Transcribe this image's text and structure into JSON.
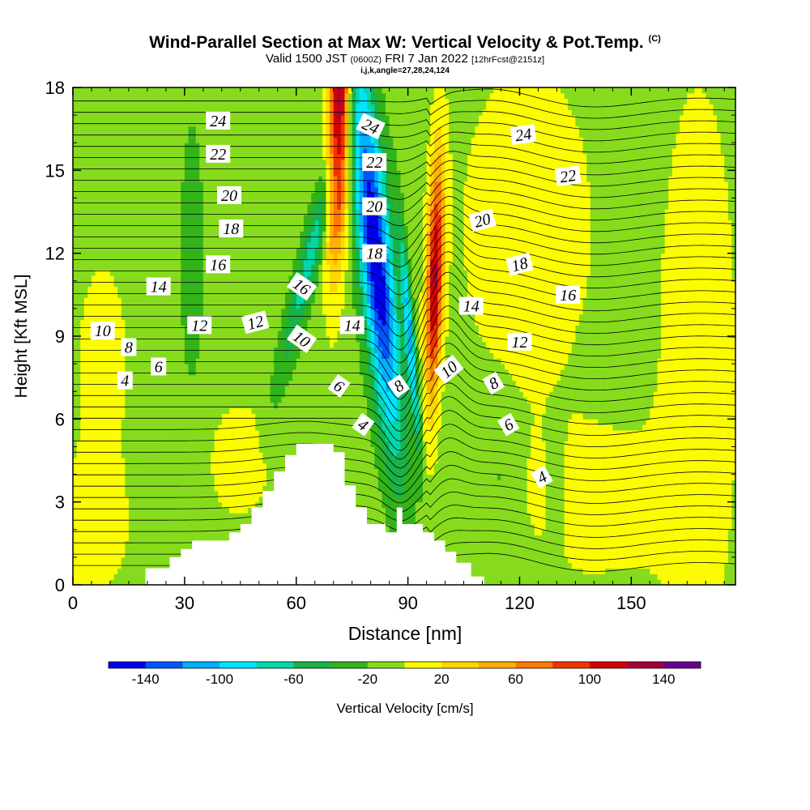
{
  "title": {
    "main": "Wind-Parallel Section at Max W: Vertical Velocity & Pot.Temp.",
    "copyright": "(C)",
    "valid_prefix": "Valid 1500 JST",
    "valid_zulu": "(0600Z)",
    "valid_date": "FRI 7 Jan 2022",
    "valid_fcst": "[12hrFcst@2151z]",
    "indices": "i,j,k,angle=27,28,24,124"
  },
  "chart_data": {
    "type": "heatmap",
    "xlabel": "Distance [nm]",
    "ylabel": "Height [Kft MSL]",
    "xlim": [
      0,
      178
    ],
    "ylim": [
      0,
      18
    ],
    "xticks": [
      0,
      30,
      60,
      90,
      120,
      150
    ],
    "yticks": [
      0,
      3,
      6,
      9,
      12,
      15,
      18
    ],
    "grid": false,
    "colorbar": {
      "label": "Vertical Velocity [cm/s]",
      "boundaries": [
        -160,
        -140,
        -120,
        -100,
        -80,
        -60,
        -40,
        -20,
        0,
        20,
        40,
        60,
        80,
        100,
        120,
        140,
        160
      ],
      "tick_labels": [
        "-140",
        "-100",
        "-60",
        "-20",
        "20",
        "60",
        "100",
        "140"
      ],
      "colors": [
        "#0000ee",
        "#0055ff",
        "#00b0ff",
        "#00e5ff",
        "#00d8a8",
        "#19b24a",
        "#32b31a",
        "#86dc1c",
        "#fcfc00",
        "#ffd700",
        "#ffb000",
        "#ff7a00",
        "#f23300",
        "#d60000",
        "#a8003c",
        "#6a0090"
      ]
    },
    "terrain_profile": {
      "distance_nm": [
        0,
        19.5,
        19.5,
        26,
        26,
        29,
        29,
        32,
        32,
        42,
        42,
        45,
        45,
        48,
        48,
        51,
        51,
        54,
        54,
        57,
        57,
        60,
        60,
        70,
        70,
        73,
        73,
        76,
        76,
        79,
        79,
        84,
        84,
        87,
        87,
        88.5,
        88.5,
        94,
        94,
        97,
        97,
        100,
        100,
        103,
        103,
        107,
        107,
        110.5,
        110.5,
        178
      ],
      "height_kft": [
        0,
        0,
        0.6,
        0.6,
        1.0,
        1.0,
        1.3,
        1.3,
        1.6,
        1.6,
        1.9,
        1.9,
        2.2,
        2.2,
        2.8,
        2.8,
        3.4,
        3.4,
        4.1,
        4.1,
        4.7,
        4.7,
        5.1,
        5.1,
        4.8,
        4.8,
        3.6,
        3.6,
        2.8,
        2.8,
        2.2,
        2.2,
        1.9,
        1.9,
        2.8,
        2.8,
        2.2,
        2.2,
        1.9,
        1.9,
        1.6,
        1.6,
        1.2,
        1.2,
        0.8,
        0.8,
        0.3,
        0.3,
        0,
        0
      ]
    },
    "vertical_velocity_features": [
      {
        "feature": "background",
        "value_cm_s": -10
      },
      {
        "feature": "lee downdraft",
        "center_nm": [
          75,
          91
        ],
        "top_kft": 18,
        "base_kft": 4,
        "min_value_cm_s": -150
      },
      {
        "feature": "upstream updraft",
        "center_nm": [
          70,
          80
        ],
        "top_kft": 18,
        "base_kft": 9,
        "max_value_cm_s": 150
      },
      {
        "feature": "lee wave updraft",
        "center_nm": [
          96,
          99
        ],
        "top_kft": 15,
        "base_kft": 5,
        "max_value_cm_s": 120
      },
      {
        "feature": "upwind updraft",
        "center_nm": [
          4,
          14
        ],
        "top_kft": 12,
        "base_kft": 3,
        "max_value_cm_s": 20
      },
      {
        "feature": "downwind updraft",
        "center_nm": [
          130,
          178
        ],
        "top_kft": 18,
        "base_kft": 1,
        "max_value_cm_s": 30
      }
    ],
    "contour_labels": {
      "series": "Pot.Temp.",
      "labels": [
        {
          "text": "4",
          "x": 14,
          "y": 7.4,
          "angle": 0
        },
        {
          "text": "6",
          "x": 23,
          "y": 7.9,
          "angle": 0
        },
        {
          "text": "8",
          "x": 15,
          "y": 8.6,
          "angle": 0
        },
        {
          "text": "10",
          "x": 8,
          "y": 9.2,
          "angle": 0
        },
        {
          "text": "12",
          "x": 34,
          "y": 9.4,
          "angle": 0
        },
        {
          "text": "12",
          "x": 49,
          "y": 9.5,
          "angle": -15
        },
        {
          "text": "14",
          "x": 23,
          "y": 10.8,
          "angle": 0
        },
        {
          "text": "16",
          "x": 39,
          "y": 11.6,
          "angle": 0
        },
        {
          "text": "18",
          "x": 42.5,
          "y": 12.9,
          "angle": 0
        },
        {
          "text": "20",
          "x": 42,
          "y": 14.1,
          "angle": 0
        },
        {
          "text": "22",
          "x": 39,
          "y": 15.6,
          "angle": 0
        },
        {
          "text": "24",
          "x": 39,
          "y": 16.8,
          "angle": 0
        },
        {
          "text": "16",
          "x": 61.5,
          "y": 10.8,
          "angle": 35
        },
        {
          "text": "10",
          "x": 61.5,
          "y": 8.9,
          "angle": 35
        },
        {
          "text": "14",
          "x": 75,
          "y": 9.4,
          "angle": 0
        },
        {
          "text": "6",
          "x": 71.5,
          "y": 7.2,
          "angle": 35
        },
        {
          "text": "4",
          "x": 78,
          "y": 5.8,
          "angle": 35
        },
        {
          "text": "8",
          "x": 87.5,
          "y": 7.2,
          "angle": -35
        },
        {
          "text": "10",
          "x": 101,
          "y": 7.8,
          "angle": -40
        },
        {
          "text": "14",
          "x": 107,
          "y": 10.1,
          "angle": 0
        },
        {
          "text": "12",
          "x": 120,
          "y": 8.8,
          "angle": 0
        },
        {
          "text": "8",
          "x": 113,
          "y": 7.3,
          "angle": -30
        },
        {
          "text": "6",
          "x": 117,
          "y": 5.8,
          "angle": -30
        },
        {
          "text": "4",
          "x": 126,
          "y": 3.9,
          "angle": -30
        },
        {
          "text": "16",
          "x": 133,
          "y": 10.5,
          "angle": 0
        },
        {
          "text": "18",
          "x": 120,
          "y": 11.6,
          "angle": -15
        },
        {
          "text": "20",
          "x": 110,
          "y": 13.2,
          "angle": -15
        },
        {
          "text": "22",
          "x": 133,
          "y": 14.8,
          "angle": -8
        },
        {
          "text": "24",
          "x": 121,
          "y": 16.3,
          "angle": -8
        },
        {
          "text": "24",
          "x": 80,
          "y": 16.6,
          "angle": 25
        },
        {
          "text": "22",
          "x": 81,
          "y": 15.3,
          "angle": 0
        },
        {
          "text": "20",
          "x": 81,
          "y": 13.7,
          "angle": 0
        },
        {
          "text": "18",
          "x": 81,
          "y": 12.0,
          "angle": 0
        }
      ]
    }
  }
}
